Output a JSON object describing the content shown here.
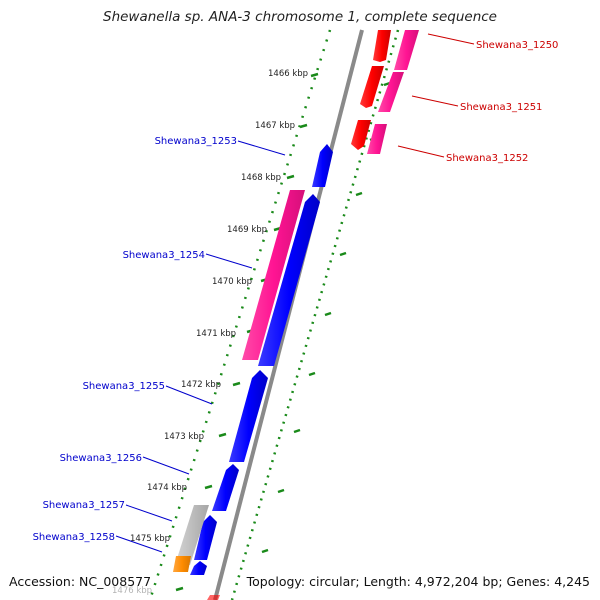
{
  "title": "Shewanella sp. ANA-3 chromosome 1, complete sequence",
  "footer": {
    "accession": "Accession: NC_008577",
    "summary": "Topology: circular; Length: 4,972,204 bp; Genes: 4,245"
  },
  "colors": {
    "forward_cds": "#0000ff",
    "reverse_cds": "#ff0000",
    "gene": "#ff1493",
    "other_cds": "#aaaaaa",
    "orange_feature": "#ff8c00",
    "backbone": "#888888",
    "tick": "#1a8a1a",
    "forward_label": "#0000cc",
    "reverse_label": "#cc0000"
  },
  "ruler": {
    "labels": [
      "1466 kbp",
      "1467 kbp",
      "1468 kbp",
      "1469 kbp",
      "1470 kbp",
      "1471 kbp",
      "1472 kbp",
      "1473 kbp",
      "1474 kbp",
      "1475 kbp",
      "1476 kbp"
    ]
  },
  "gene_labels": {
    "right": [
      "Shewana3_1250",
      "Shewana3_1251",
      "Shewana3_1252"
    ],
    "left": [
      "Shewana3_1253",
      "Shewana3_1254",
      "Shewana3_1255",
      "Shewana3_1256",
      "Shewana3_1257",
      "Shewana3_1258"
    ]
  }
}
